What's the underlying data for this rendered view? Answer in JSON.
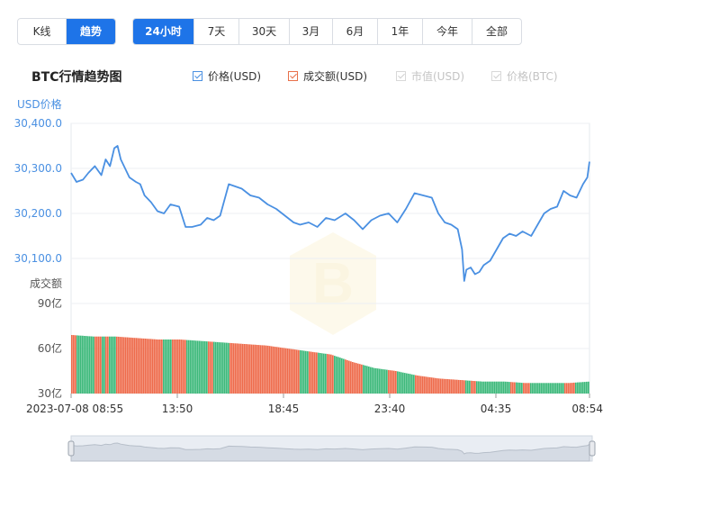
{
  "toolbar": {
    "view_buttons": [
      {
        "label": "K线",
        "active": false
      },
      {
        "label": "趋势",
        "active": true
      }
    ],
    "range_buttons": [
      {
        "label": "24小时",
        "active": true
      },
      {
        "label": "7天",
        "active": false
      },
      {
        "label": "30天",
        "active": false
      },
      {
        "label": "3月",
        "active": false
      },
      {
        "label": "6月",
        "active": false
      },
      {
        "label": "1年",
        "active": false
      },
      {
        "label": "今年",
        "active": false
      },
      {
        "label": "全部",
        "active": false
      }
    ]
  },
  "title": "BTC行情趋势图",
  "legend": [
    {
      "label": "价格(USD)",
      "checked": true,
      "enabled": true,
      "color": "#4a90e2"
    },
    {
      "label": "成交额(USD)",
      "checked": true,
      "enabled": true,
      "color": "#e8704a"
    },
    {
      "label": "市值(USD)",
      "checked": true,
      "enabled": false,
      "color": "#c8c8c8"
    },
    {
      "label": "价格(BTC)",
      "checked": true,
      "enabled": false,
      "color": "#c8c8c8"
    }
  ],
  "chart_data": {
    "type": "line",
    "price_axis": {
      "label": "USD价格",
      "ticks": [
        "30,400.0",
        "30,300.0",
        "30,200.0",
        "30,100.0"
      ],
      "tick_values": [
        30400,
        30300,
        30200,
        30100
      ],
      "ylim": [
        30000,
        30400
      ]
    },
    "volume_axis": {
      "label": "成交额",
      "ticks": [
        "90亿",
        "60亿",
        "30亿"
      ],
      "tick_values": [
        90,
        60,
        30
      ],
      "ylim": [
        30,
        90
      ],
      "unit": "亿"
    },
    "x_ticks": [
      "2023-07-08 08:55",
      "13:50",
      "18:45",
      "23:40",
      "04:35",
      "08:54"
    ],
    "x_tick_hours": [
      0,
      4.917,
      9.833,
      14.75,
      19.667,
      24
    ],
    "price_series": {
      "name": "价格(USD)",
      "color": "#4a90e2",
      "points": [
        [
          0.0,
          30290
        ],
        [
          0.25,
          30270
        ],
        [
          0.55,
          30275
        ],
        [
          0.8,
          30290
        ],
        [
          1.1,
          30305
        ],
        [
          1.4,
          30285
        ],
        [
          1.6,
          30320
        ],
        [
          1.8,
          30305
        ],
        [
          2.0,
          30345
        ],
        [
          2.15,
          30350
        ],
        [
          2.3,
          30320
        ],
        [
          2.5,
          30300
        ],
        [
          2.7,
          30280
        ],
        [
          3.0,
          30270
        ],
        [
          3.2,
          30265
        ],
        [
          3.4,
          30240
        ],
        [
          3.7,
          30225
        ],
        [
          4.0,
          30205
        ],
        [
          4.3,
          30200
        ],
        [
          4.6,
          30220
        ],
        [
          5.0,
          30215
        ],
        [
          5.3,
          30170
        ],
        [
          5.6,
          30170
        ],
        [
          6.0,
          30175
        ],
        [
          6.3,
          30190
        ],
        [
          6.6,
          30185
        ],
        [
          6.9,
          30195
        ],
        [
          7.3,
          30265
        ],
        [
          7.6,
          30260
        ],
        [
          7.9,
          30255
        ],
        [
          8.3,
          30240
        ],
        [
          8.7,
          30235
        ],
        [
          9.1,
          30220
        ],
        [
          9.5,
          30210
        ],
        [
          9.9,
          30195
        ],
        [
          10.3,
          30180
        ],
        [
          10.6,
          30175
        ],
        [
          11.0,
          30180
        ],
        [
          11.4,
          30170
        ],
        [
          11.8,
          30190
        ],
        [
          12.2,
          30185
        ],
        [
          12.7,
          30200
        ],
        [
          13.1,
          30185
        ],
        [
          13.5,
          30165
        ],
        [
          13.9,
          30185
        ],
        [
          14.3,
          30195
        ],
        [
          14.7,
          30200
        ],
        [
          15.1,
          30180
        ],
        [
          15.5,
          30210
        ],
        [
          15.9,
          30245
        ],
        [
          16.3,
          30240
        ],
        [
          16.7,
          30235
        ],
        [
          17.0,
          30200
        ],
        [
          17.3,
          30180
        ],
        [
          17.6,
          30175
        ],
        [
          17.9,
          30165
        ],
        [
          18.1,
          30120
        ],
        [
          18.2,
          30050
        ],
        [
          18.3,
          30075
        ],
        [
          18.5,
          30080
        ],
        [
          18.7,
          30065
        ],
        [
          18.9,
          30070
        ],
        [
          19.1,
          30085
        ],
        [
          19.4,
          30095
        ],
        [
          19.7,
          30120
        ],
        [
          20.0,
          30145
        ],
        [
          20.3,
          30155
        ],
        [
          20.6,
          30150
        ],
        [
          20.9,
          30160
        ],
        [
          21.3,
          30150
        ],
        [
          21.6,
          30175
        ],
        [
          21.9,
          30200
        ],
        [
          22.2,
          30210
        ],
        [
          22.5,
          30215
        ],
        [
          22.8,
          30250
        ],
        [
          23.1,
          30240
        ],
        [
          23.4,
          30235
        ],
        [
          23.7,
          30265
        ],
        [
          23.9,
          30280
        ],
        [
          24.0,
          30315
        ]
      ]
    },
    "volume_series": {
      "name": "成交额(USD)",
      "up_color": "#3cb87a",
      "down_color": "#ee6a4a",
      "points": [
        [
          0,
          69
        ],
        [
          1,
          68
        ],
        [
          2,
          68
        ],
        [
          3,
          67
        ],
        [
          4,
          66
        ],
        [
          5,
          66
        ],
        [
          6,
          65
        ],
        [
          7,
          64
        ],
        [
          8,
          63
        ],
        [
          9,
          62
        ],
        [
          10,
          60
        ],
        [
          11,
          58
        ],
        [
          12,
          56
        ],
        [
          13,
          51
        ],
        [
          14,
          47
        ],
        [
          15,
          45
        ],
        [
          16,
          42
        ],
        [
          17,
          40
        ],
        [
          18,
          39
        ],
        [
          19,
          38
        ],
        [
          20,
          38
        ],
        [
          21,
          37
        ],
        [
          22,
          37
        ],
        [
          23,
          37
        ],
        [
          24,
          38
        ]
      ]
    },
    "grid": true,
    "navigator": true
  }
}
